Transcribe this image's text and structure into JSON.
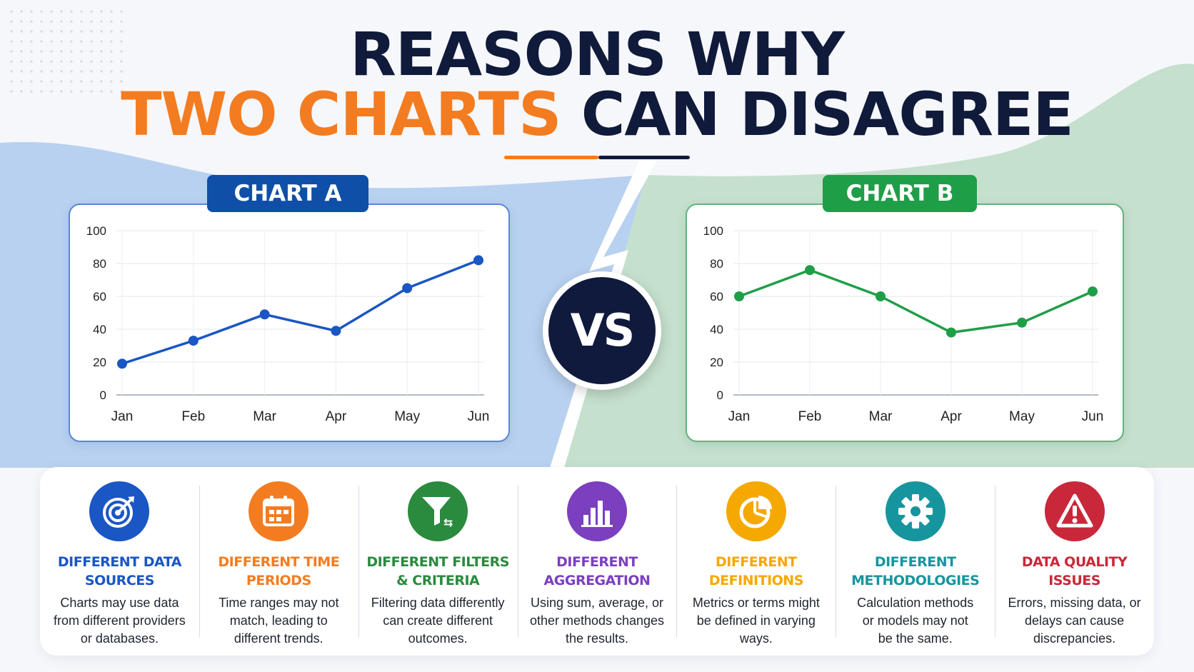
{
  "title": {
    "line1": "REASONS WHY",
    "line2_accent": "TWO CHARTS",
    "line2_rest": "CAN DISAGREE"
  },
  "vs_label": "VS",
  "colors": {
    "navy": "#101a3a",
    "orange": "#f47c20",
    "blue": "#1a56c4",
    "green": "#1f9e48"
  },
  "chart_data": [
    {
      "type": "line",
      "title": "CHART A",
      "badge_color": "#0f4fa8",
      "line_color": "#1a56c4",
      "categories": [
        "Jan",
        "Feb",
        "Mar",
        "Apr",
        "May",
        "Jun"
      ],
      "series": [
        {
          "values": [
            19,
            33,
            49,
            39,
            65,
            82
          ]
        }
      ],
      "ylim": [
        0,
        100
      ],
      "yticks": [
        0,
        20,
        40,
        60,
        80,
        100
      ],
      "grid": true
    },
    {
      "type": "line",
      "title": "CHART B",
      "badge_color": "#1f9e48",
      "line_color": "#1f9e48",
      "categories": [
        "Jan",
        "Feb",
        "Mar",
        "Apr",
        "May",
        "Jun"
      ],
      "series": [
        {
          "values": [
            60,
            76,
            60,
            38,
            44,
            63
          ]
        }
      ],
      "ylim": [
        0,
        100
      ],
      "yticks": [
        0,
        20,
        40,
        60,
        80,
        100
      ],
      "grid": true
    }
  ],
  "reasons": [
    {
      "title1": "DIFFERENT DATA",
      "title2": "SOURCES",
      "desc1": "Charts may use data",
      "desc2": "from different providers",
      "desc3": "or databases.",
      "color": "#1a56c4",
      "icon": "target-icon"
    },
    {
      "title1": "DIFFERENT TIME",
      "title2": "PERIODS",
      "desc1": "Time ranges may not",
      "desc2": "match, leading to",
      "desc3": "different trends.",
      "color": "#f47c20",
      "icon": "calendar-icon"
    },
    {
      "title1": "DIFFERENT FILTERS",
      "title2": "& CRITERIA",
      "desc1": "Filtering data differently",
      "desc2": "can create different",
      "desc3": "outcomes.",
      "color": "#2a8a3e",
      "icon": "filter-icon"
    },
    {
      "title1": "DIFFERENT",
      "title2": "AGGREGATION",
      "desc1": "Using sum, average, or",
      "desc2": "other methods changes",
      "desc3": "the results.",
      "color": "#7b3fbf",
      "icon": "bar-chart-icon"
    },
    {
      "title1": "DIFFERENT",
      "title2": "DEFINITIONS",
      "desc1": "Metrics or terms might",
      "desc2": "be defined in varying",
      "desc3": "ways.",
      "color": "#f5a800",
      "icon": "pie-chart-icon"
    },
    {
      "title1": "DIFFERENT",
      "title2": "METHODOLOGIES",
      "desc1": "Calculation methods",
      "desc2": "or models may not",
      "desc3": "be the same.",
      "color": "#17959e",
      "icon": "gear-icon"
    },
    {
      "title1": "DATA QUALITY",
      "title2": "ISSUES",
      "desc1": "Errors, missing data, or",
      "desc2": "delays can cause",
      "desc3": "discrepancies.",
      "color": "#c8283a",
      "icon": "warning-icon"
    }
  ]
}
